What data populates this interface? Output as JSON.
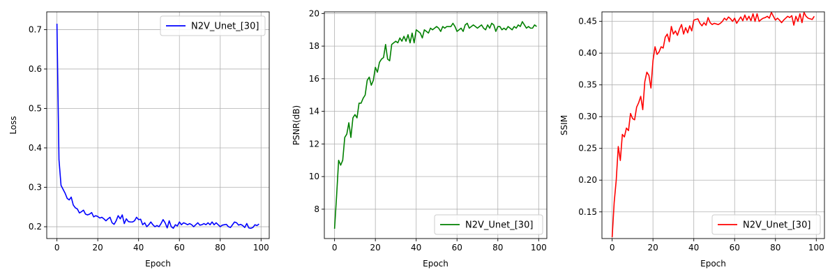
{
  "chart_data": [
    {
      "type": "line",
      "xlabel": "Epoch",
      "ylabel": "Loss",
      "xlim": [
        -5,
        104
      ],
      "ylim": [
        0.17,
        0.745
      ],
      "xticks": [
        0,
        20,
        40,
        60,
        80,
        100
      ],
      "yticks": [
        0.2,
        0.3,
        0.4,
        0.5,
        0.6,
        0.7
      ],
      "ytick_decimals": 1,
      "grid": true,
      "legend_position": "upper-right",
      "series": [
        {
          "name": "N2V_Unet_[30]",
          "color": "#0000ff",
          "x_start": 0,
          "values": [
            0.715,
            0.37,
            0.305,
            0.295,
            0.285,
            0.272,
            0.268,
            0.275,
            0.255,
            0.248,
            0.245,
            0.235,
            0.238,
            0.242,
            0.232,
            0.23,
            0.232,
            0.236,
            0.225,
            0.228,
            0.226,
            0.222,
            0.224,
            0.22,
            0.215,
            0.22,
            0.224,
            0.21,
            0.206,
            0.215,
            0.228,
            0.22,
            0.23,
            0.208,
            0.22,
            0.213,
            0.212,
            0.212,
            0.215,
            0.224,
            0.218,
            0.219,
            0.205,
            0.21,
            0.2,
            0.205,
            0.212,
            0.205,
            0.2,
            0.203,
            0.2,
            0.208,
            0.218,
            0.21,
            0.197,
            0.215,
            0.2,
            0.196,
            0.205,
            0.202,
            0.212,
            0.205,
            0.21,
            0.208,
            0.205,
            0.208,
            0.205,
            0.2,
            0.205,
            0.21,
            0.204,
            0.205,
            0.208,
            0.205,
            0.21,
            0.205,
            0.212,
            0.205,
            0.21,
            0.205,
            0.2,
            0.204,
            0.205,
            0.206,
            0.2,
            0.198,
            0.205,
            0.212,
            0.21,
            0.204,
            0.206,
            0.203,
            0.198,
            0.208,
            0.197,
            0.196,
            0.198,
            0.205,
            0.203,
            0.207
          ]
        }
      ]
    },
    {
      "type": "line",
      "xlabel": "Epoch",
      "ylabel": "PSNR(dB)",
      "xlim": [
        -5,
        104
      ],
      "ylim": [
        6.2,
        20.1
      ],
      "xticks": [
        0,
        20,
        40,
        60,
        80,
        100
      ],
      "yticks": [
        8,
        10,
        12,
        14,
        16,
        18,
        20
      ],
      "ytick_decimals": 0,
      "grid": true,
      "legend_position": "lower-right",
      "series": [
        {
          "name": "N2V_Unet_[30]",
          "color": "#008000",
          "x_start": 0,
          "values": [
            6.8,
            8.8,
            11.0,
            10.7,
            11.0,
            12.4,
            12.6,
            13.3,
            12.4,
            13.6,
            13.8,
            13.6,
            14.5,
            14.5,
            14.8,
            15.0,
            15.9,
            16.1,
            15.6,
            15.9,
            16.7,
            16.4,
            17.0,
            17.2,
            17.3,
            18.1,
            17.2,
            17.1,
            18.1,
            18.2,
            18.3,
            18.2,
            18.5,
            18.3,
            18.6,
            18.3,
            18.7,
            18.2,
            18.8,
            18.2,
            19.0,
            18.9,
            18.8,
            18.5,
            19.0,
            18.9,
            18.8,
            19.1,
            19.0,
            19.1,
            19.2,
            19.1,
            18.9,
            19.2,
            19.1,
            19.2,
            19.2,
            19.2,
            19.4,
            19.2,
            18.9,
            19.0,
            19.1,
            18.9,
            19.3,
            19.4,
            19.1,
            19.2,
            19.3,
            19.2,
            19.1,
            19.2,
            19.3,
            19.1,
            19.0,
            19.3,
            19.1,
            19.4,
            19.3,
            18.9,
            19.2,
            19.2,
            19.0,
            19.1,
            19.0,
            19.2,
            19.1,
            19.0,
            19.2,
            19.1,
            19.3,
            19.2,
            19.5,
            19.3,
            19.1,
            19.2,
            19.1,
            19.1,
            19.3,
            19.2
          ]
        }
      ]
    },
    {
      "type": "line",
      "xlabel": "Epoch",
      "ylabel": "SSIM",
      "xlim": [
        -5,
        104
      ],
      "ylim": [
        0.108,
        0.465
      ],
      "xticks": [
        0,
        20,
        40,
        60,
        80,
        100
      ],
      "yticks": [
        0.15,
        0.2,
        0.25,
        0.3,
        0.35,
        0.4,
        0.45
      ],
      "ytick_decimals": 2,
      "grid": true,
      "legend_position": "lower-right",
      "series": [
        {
          "name": "N2V_Unet_[30]",
          "color": "#ff0000",
          "x_start": 0,
          "values": [
            0.11,
            0.165,
            0.2,
            0.253,
            0.231,
            0.272,
            0.268,
            0.282,
            0.278,
            0.305,
            0.297,
            0.295,
            0.315,
            0.322,
            0.332,
            0.311,
            0.355,
            0.37,
            0.365,
            0.345,
            0.388,
            0.41,
            0.398,
            0.402,
            0.41,
            0.408,
            0.425,
            0.43,
            0.418,
            0.442,
            0.43,
            0.435,
            0.428,
            0.438,
            0.445,
            0.43,
            0.44,
            0.432,
            0.443,
            0.435,
            0.452,
            0.453,
            0.454,
            0.447,
            0.443,
            0.448,
            0.444,
            0.456,
            0.448,
            0.445,
            0.447,
            0.446,
            0.445,
            0.447,
            0.45,
            0.455,
            0.452,
            0.457,
            0.454,
            0.45,
            0.455,
            0.447,
            0.452,
            0.457,
            0.451,
            0.46,
            0.452,
            0.458,
            0.451,
            0.462,
            0.45,
            0.462,
            0.45,
            0.453,
            0.455,
            0.456,
            0.458,
            0.455,
            0.464,
            0.458,
            0.452,
            0.455,
            0.452,
            0.448,
            0.452,
            0.455,
            0.458,
            0.456,
            0.459,
            0.444,
            0.458,
            0.45,
            0.462,
            0.448,
            0.464,
            0.458,
            0.455,
            0.454,
            0.453,
            0.458
          ]
        }
      ]
    }
  ]
}
